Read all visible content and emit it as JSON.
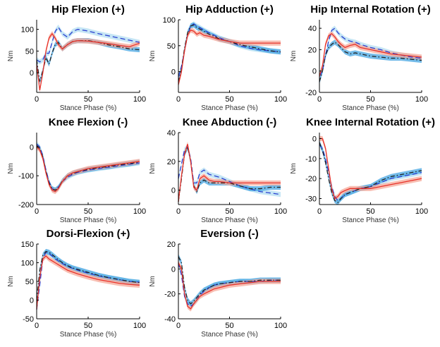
{
  "chart_data": [
    {
      "type": "line",
      "title": "Hip Flexion (+)",
      "xlabel": "Stance Phase (%)",
      "ylabel": "Nm",
      "xlim": [
        0,
        100
      ],
      "ylim": [
        -45,
        122
      ],
      "xticks": [
        0,
        50,
        100
      ],
      "yticks": [
        0,
        50,
        100
      ],
      "show_ylabel": true,
      "series": [
        {
          "name": "red",
          "values": [
            20,
            -40,
            0,
            50,
            80,
            90,
            80,
            65,
            55,
            65,
            72,
            74,
            73,
            70,
            67,
            63,
            60,
            68
          ]
        },
        {
          "name": "blue-dashed",
          "values": [
            30,
            25,
            30,
            45,
            45,
            70,
            95,
            105,
            90,
            82,
            95,
            100,
            96,
            90,
            85,
            80,
            75,
            70
          ]
        },
        {
          "name": "black-dashdot",
          "values": [
            30,
            -20,
            5,
            35,
            20,
            45,
            65,
            70,
            55,
            65,
            72,
            74,
            74,
            70,
            64,
            60,
            55,
            53
          ]
        }
      ]
    },
    {
      "type": "line",
      "title": "Hip Adduction (+)",
      "xlabel": "Stance Phase (%)",
      "ylabel": "Nm",
      "xlim": [
        0,
        100
      ],
      "ylim": [
        -40,
        100
      ],
      "xticks": [
        0,
        50,
        100
      ],
      "yticks": [
        0,
        50,
        100
      ],
      "show_ylabel": true,
      "series": [
        {
          "name": "red",
          "values": [
            -25,
            0,
            40,
            70,
            80,
            78,
            72,
            75,
            70,
            68,
            65,
            62,
            58,
            55,
            55,
            55,
            55,
            55
          ]
        },
        {
          "name": "blue-dashed",
          "values": [
            -10,
            10,
            40,
            70,
            88,
            92,
            88,
            85,
            80,
            75,
            70,
            65,
            58,
            50,
            45,
            42,
            40,
            38
          ]
        },
        {
          "name": "black-dashdot",
          "values": [
            -20,
            5,
            45,
            75,
            88,
            90,
            85,
            82,
            78,
            72,
            68,
            63,
            58,
            52,
            48,
            44,
            40,
            38
          ]
        }
      ]
    },
    {
      "type": "line",
      "title": "Hip Internal Rotation (+)",
      "xlabel": "Stance Phase (%)",
      "ylabel": "Nm",
      "xlim": [
        0,
        100
      ],
      "ylim": [
        -20,
        48
      ],
      "xticks": [
        0,
        50,
        100
      ],
      "yticks": [
        -20,
        0,
        20,
        40
      ],
      "show_ylabel": true,
      "series": [
        {
          "name": "red",
          "values": [
            -5,
            5,
            25,
            33,
            35,
            32,
            28,
            25,
            22,
            24,
            25,
            22,
            20,
            18,
            16,
            15,
            14,
            13
          ]
        },
        {
          "name": "blue-dashed",
          "values": [
            -5,
            0,
            15,
            28,
            38,
            40,
            36,
            33,
            30,
            28,
            27,
            25,
            22,
            20,
            17,
            15,
            13,
            12
          ]
        },
        {
          "name": "black-dashdot",
          "values": [
            -10,
            0,
            15,
            22,
            25,
            27,
            25,
            22,
            18,
            16,
            17,
            16,
            14,
            13,
            12,
            12,
            11,
            10
          ]
        }
      ]
    },
    {
      "type": "line",
      "title": "Knee Flexion (-)",
      "xlabel": "Stance Phase (%)",
      "ylabel": "Nm",
      "xlim": [
        0,
        100
      ],
      "ylim": [
        -200,
        50
      ],
      "xticks": [
        0,
        50,
        100
      ],
      "yticks": [
        -200,
        -100,
        0
      ],
      "show_ylabel": true,
      "series": [
        {
          "name": "red",
          "values": [
            0,
            -10,
            -40,
            -90,
            -130,
            -150,
            -155,
            -145,
            -120,
            -100,
            -90,
            -85,
            -75,
            -70,
            -65,
            -60,
            -55,
            -50
          ]
        },
        {
          "name": "blue-dashed",
          "values": [
            10,
            0,
            -30,
            -80,
            -120,
            -145,
            -150,
            -140,
            -120,
            -105,
            -95,
            -88,
            -80,
            -75,
            -70,
            -65,
            -60,
            -55
          ]
        },
        {
          "name": "black-dashdot",
          "values": [
            5,
            -5,
            -35,
            -85,
            -125,
            -145,
            -150,
            -142,
            -118,
            -100,
            -92,
            -86,
            -78,
            -72,
            -68,
            -62,
            -58,
            -52
          ]
        }
      ]
    },
    {
      "type": "line",
      "title": "Knee Abduction (-)",
      "xlabel": "Stance Phase (%)",
      "ylabel": "Nm",
      "xlim": [
        0,
        100
      ],
      "ylim": [
        -10,
        40
      ],
      "xticks": [
        0,
        50,
        100
      ],
      "yticks": [
        0,
        20,
        40
      ],
      "show_ylabel": true,
      "series": [
        {
          "name": "red",
          "values": [
            -8,
            10,
            25,
            32,
            20,
            2,
            0,
            8,
            10,
            7,
            6,
            6,
            5,
            5,
            5,
            5,
            5,
            5
          ]
        },
        {
          "name": "blue-dashed",
          "values": [
            8,
            18,
            28,
            30,
            22,
            5,
            5,
            12,
            14,
            11,
            10,
            9,
            6,
            3,
            1,
            -1,
            -2,
            -3
          ]
        },
        {
          "name": "black-dashdot",
          "values": [
            -8,
            8,
            25,
            30,
            20,
            3,
            -1,
            5,
            7,
            5,
            5,
            5,
            5,
            3,
            1,
            1,
            2,
            2
          ]
        }
      ]
    },
    {
      "type": "line",
      "title": "Knee Internal Rotation (+)",
      "xlabel": "Stance Phase (%)",
      "ylabel": "Nm",
      "xlim": [
        0,
        100
      ],
      "ylim": [
        -33,
        3
      ],
      "xticks": [
        0,
        50,
        100
      ],
      "yticks": [
        -30,
        -20,
        -10,
        0
      ],
      "show_ylabel": true,
      "series": [
        {
          "name": "red",
          "values": [
            0,
            0,
            -5,
            -15,
            -25,
            -30,
            -29,
            -27,
            -26,
            -25,
            -25,
            -25,
            -25,
            -24,
            -23,
            -22,
            -21,
            -20
          ]
        },
        {
          "name": "blue-dashed",
          "values": [
            -3,
            -5,
            -10,
            -17,
            -24,
            -29,
            -31,
            -30,
            -28,
            -27,
            -26,
            -25,
            -24,
            -22,
            -20,
            -19,
            -18,
            -17
          ]
        },
        {
          "name": "black-dashdot",
          "values": [
            -2,
            -6,
            -12,
            -20,
            -27,
            -31,
            -32,
            -30,
            -28,
            -27,
            -26,
            -25,
            -24,
            -21,
            -19,
            -18,
            -17,
            -16
          ]
        }
      ]
    },
    {
      "type": "line",
      "title": "Dorsi-Flexion (+)",
      "xlabel": "Stance Phase (%)",
      "ylabel": "Nm",
      "xlim": [
        0,
        100
      ],
      "ylim": [
        -50,
        150
      ],
      "xticks": [
        0,
        50,
        100
      ],
      "yticks": [
        -50,
        0,
        50,
        100,
        150
      ],
      "show_ylabel": true,
      "series": [
        {
          "name": "red",
          "values": [
            -25,
            60,
            110,
            118,
            110,
            105,
            100,
            95,
            88,
            80,
            75,
            70,
            62,
            55,
            50,
            45,
            42,
            40
          ]
        },
        {
          "name": "blue-dashed",
          "values": [
            -25,
            40,
            110,
            128,
            125,
            118,
            110,
            105,
            98,
            90,
            85,
            80,
            72,
            65,
            60,
            55,
            50,
            48
          ]
        },
        {
          "name": "black-dashdot",
          "values": [
            0,
            80,
            120,
            130,
            128,
            122,
            115,
            108,
            100,
            92,
            86,
            82,
            74,
            66,
            60,
            55,
            50,
            47
          ]
        }
      ]
    },
    {
      "type": "line",
      "title": "Eversion (-)",
      "xlabel": "Stance Phase (%)",
      "ylabel": "Nm",
      "xlim": [
        0,
        100
      ],
      "ylim": [
        -40,
        20
      ],
      "xticks": [
        0,
        50,
        100
      ],
      "yticks": [
        -40,
        -20,
        0,
        20
      ],
      "show_ylabel": true,
      "series": [
        {
          "name": "red",
          "values": [
            5,
            0,
            -20,
            -30,
            -32,
            -28,
            -25,
            -22,
            -20,
            -18,
            -16,
            -15,
            -13,
            -12,
            -11,
            -10,
            -10,
            -10
          ]
        },
        {
          "name": "blue-dashed",
          "values": [
            5,
            -5,
            -22,
            -28,
            -30,
            -28,
            -25,
            -21,
            -18,
            -15,
            -13,
            -12,
            -11,
            -10,
            -10,
            -10,
            -9,
            -9
          ]
        },
        {
          "name": "black-dashdot",
          "values": [
            10,
            5,
            -15,
            -25,
            -28,
            -26,
            -23,
            -20,
            -17,
            -15,
            -13,
            -12,
            -11,
            -10,
            -10,
            -9,
            -9,
            -9
          ]
        }
      ]
    }
  ],
  "x_values": [
    0,
    3,
    6,
    9,
    12,
    15,
    18,
    21,
    25,
    30,
    35,
    40,
    50,
    60,
    70,
    80,
    90,
    100
  ],
  "colors": {
    "red": "#e8322a",
    "red_band": "#f6a898",
    "blue_dashed": "#2a3fd0",
    "blue_dashed_band": "#b8e0f2",
    "black": "#222222",
    "black_band": "#3aa0e0"
  }
}
